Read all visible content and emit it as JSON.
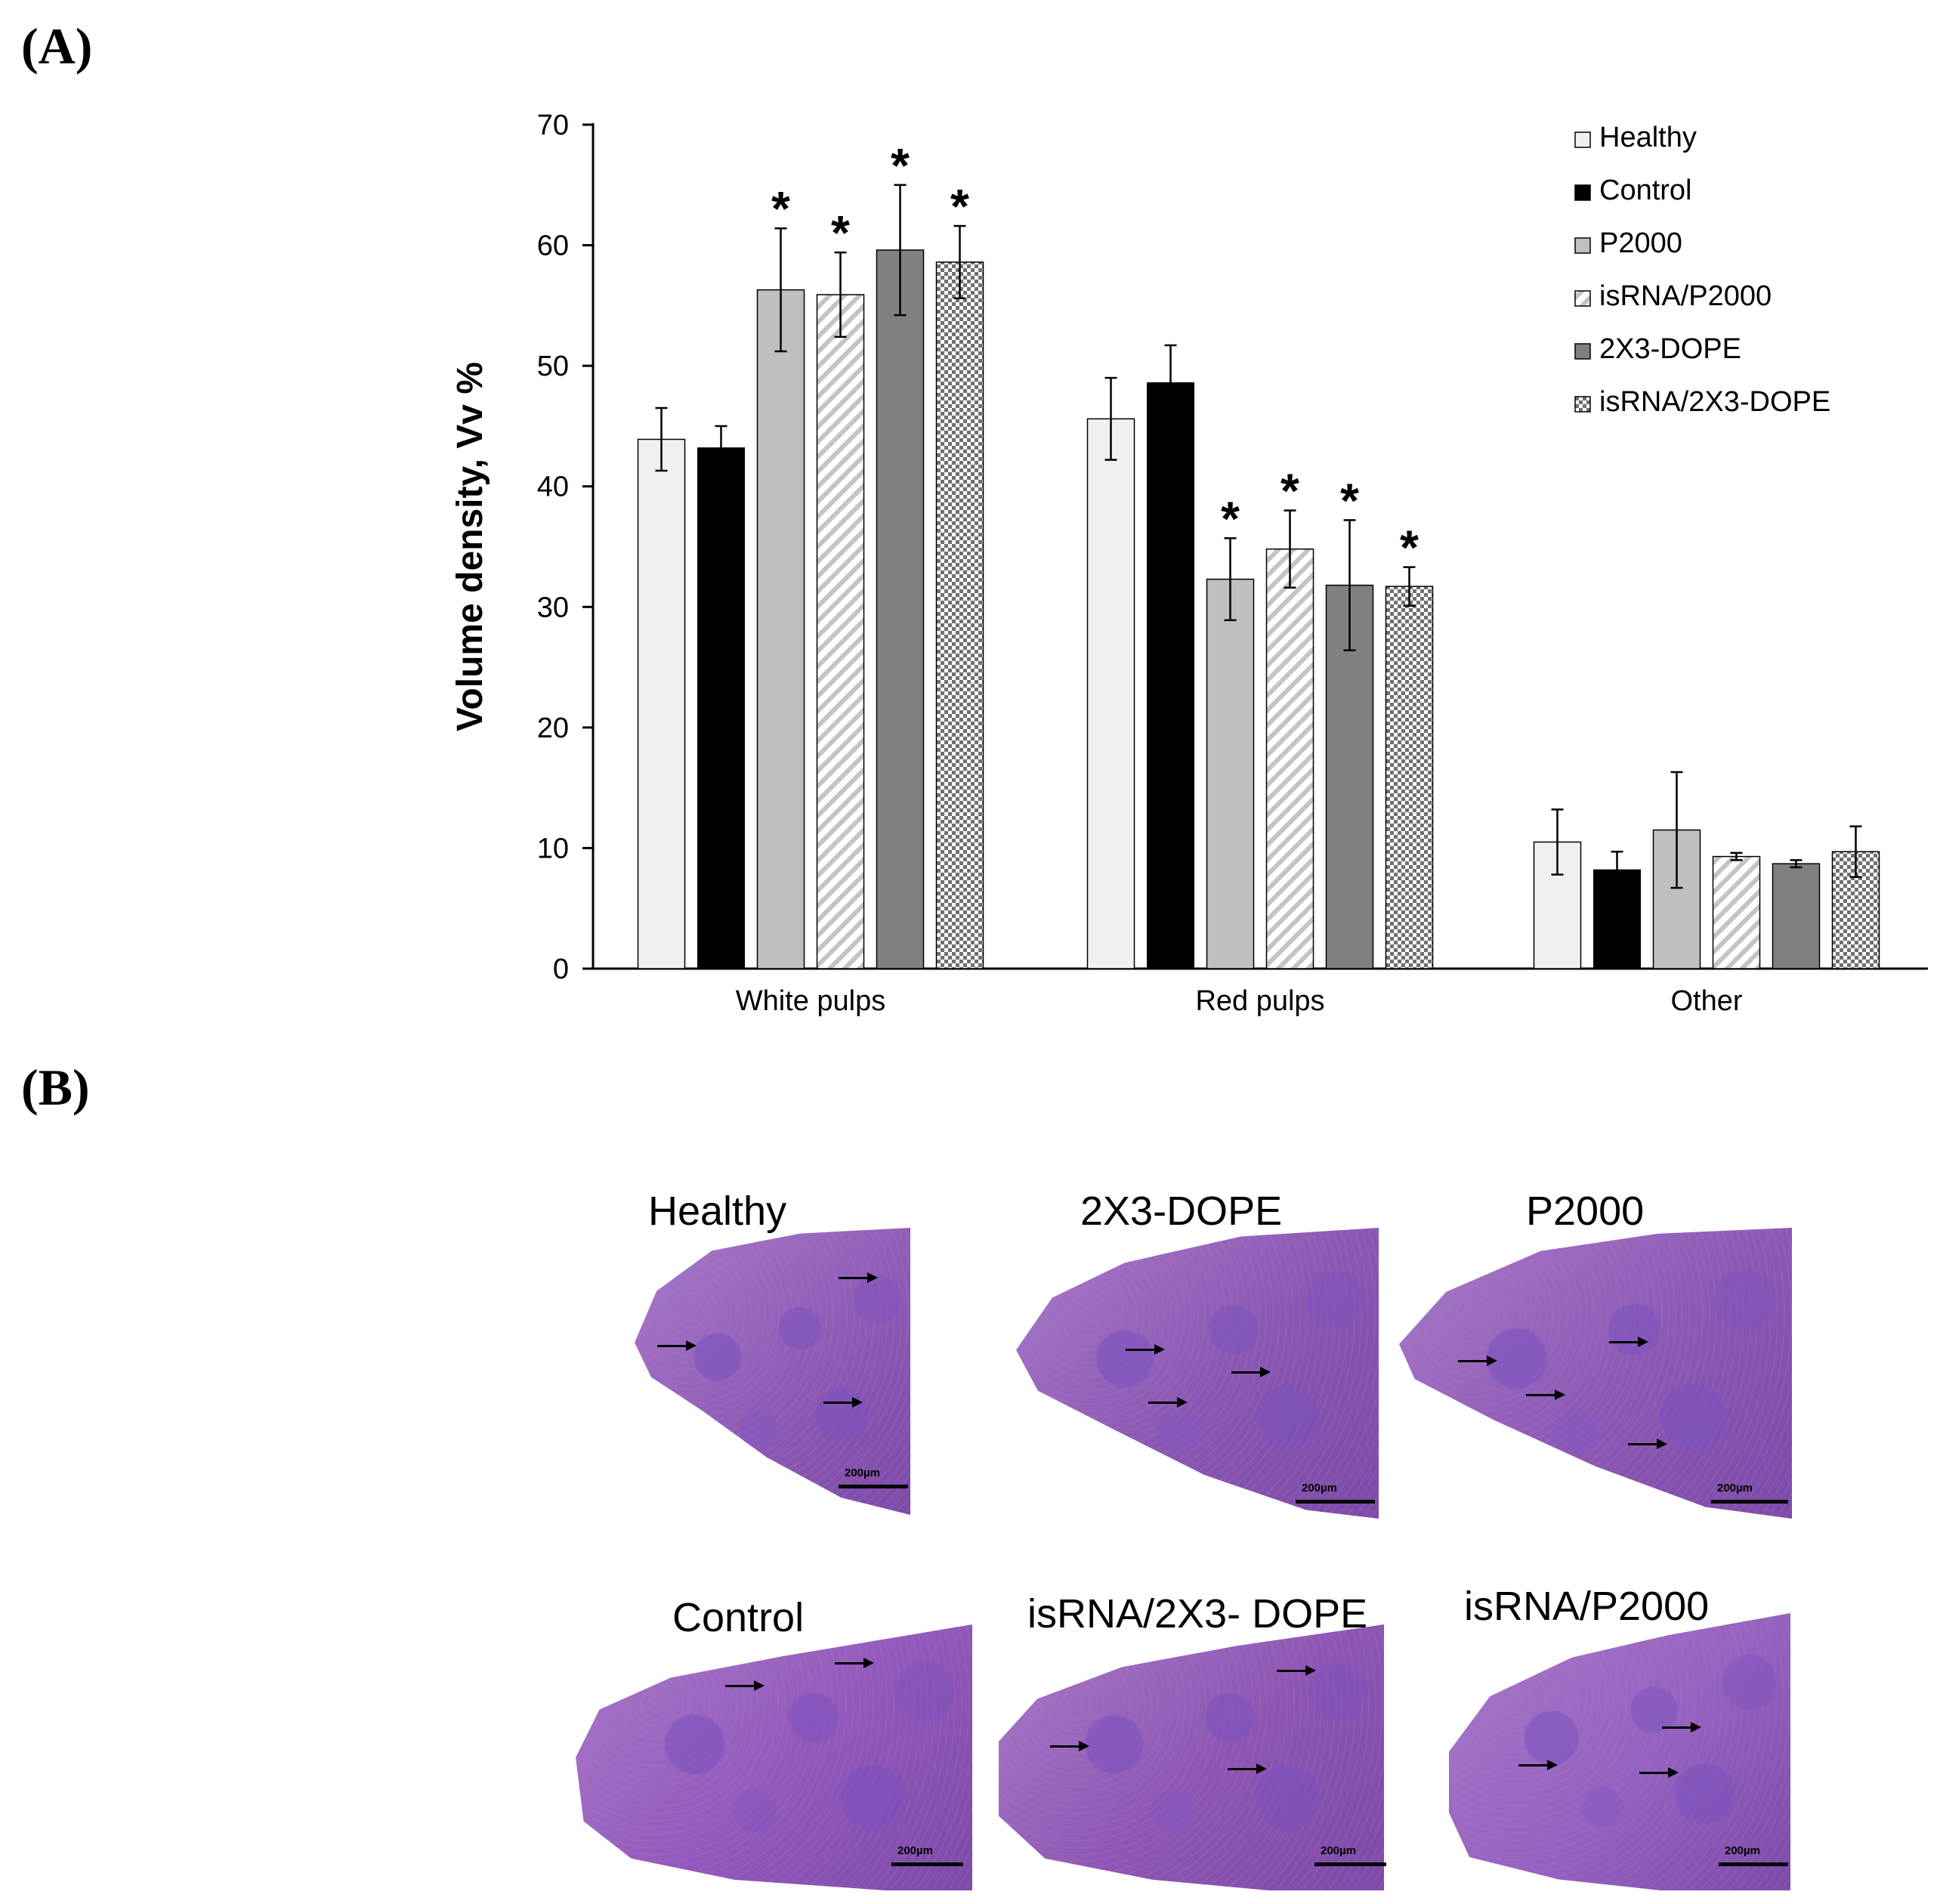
{
  "panels": {
    "a_label": "(A)",
    "b_label": "(B)"
  },
  "chart_data": {
    "type": "bar",
    "title": "",
    "xlabel": "",
    "ylabel": "Volume density, Vv %",
    "ylim": [
      0,
      70
    ],
    "yticks": [
      0,
      10,
      20,
      30,
      40,
      50,
      60,
      70
    ],
    "grid": false,
    "legend_position": "top-right",
    "categories": [
      "White pulps",
      "Red pulps",
      "Other"
    ],
    "significance_marker": "*",
    "series": [
      {
        "name": "Healthy",
        "values": [
          43.9,
          45.6,
          10.5
        ],
        "errors": [
          2.6,
          3.4,
          2.7
        ],
        "significant": [
          false,
          false,
          false
        ],
        "fill": "#f0f0f0",
        "pattern": "solid"
      },
      {
        "name": "Control",
        "values": [
          43.2,
          48.6,
          8.2
        ],
        "errors": [
          1.8,
          3.1,
          1.5
        ],
        "significant": [
          false,
          false,
          false
        ],
        "fill": "#000000",
        "pattern": "solid"
      },
      {
        "name": "P2000",
        "values": [
          56.3,
          32.3,
          11.5
        ],
        "errors": [
          5.1,
          3.4,
          4.8
        ],
        "significant": [
          true,
          true,
          false
        ],
        "fill": "#bfbfbf",
        "pattern": "solid"
      },
      {
        "name": "isRNA/P2000",
        "values": [
          55.9,
          34.8,
          9.3
        ],
        "errors": [
          3.5,
          3.2,
          0.3
        ],
        "significant": [
          true,
          true,
          false
        ],
        "fill": "#e0e0e0",
        "pattern": "hatch"
      },
      {
        "name": "2X3-DOPE",
        "values": [
          59.6,
          31.8,
          8.7
        ],
        "errors": [
          5.4,
          5.4,
          0.3
        ],
        "significant": [
          true,
          true,
          false
        ],
        "fill": "#808080",
        "pattern": "solid"
      },
      {
        "name": "isRNA/2X3-DOPE",
        "values": [
          58.6,
          31.7,
          9.7
        ],
        "errors": [
          3.0,
          1.6,
          2.1
        ],
        "significant": [
          true,
          true,
          false
        ],
        "fill": "#ffffff",
        "pattern": "checker"
      }
    ]
  },
  "micrographs": [
    {
      "label": "Healthy",
      "scale": "200µm",
      "tint": "#8e5cb6"
    },
    {
      "label": "2X3-DOPE",
      "scale": "200µm",
      "tint": "#8a58b3"
    },
    {
      "label": "P2000",
      "scale": "200µm",
      "tint": "#8c5ab5"
    },
    {
      "label": "Control",
      "scale": "200µm",
      "tint": "#9258bb"
    },
    {
      "label": "isRNA/2X3- DOPE",
      "scale": "200µm",
      "tint": "#8d56b3"
    },
    {
      "label": "isRNA/P2000",
      "scale": "200µm",
      "tint": "#9462c0"
    }
  ]
}
